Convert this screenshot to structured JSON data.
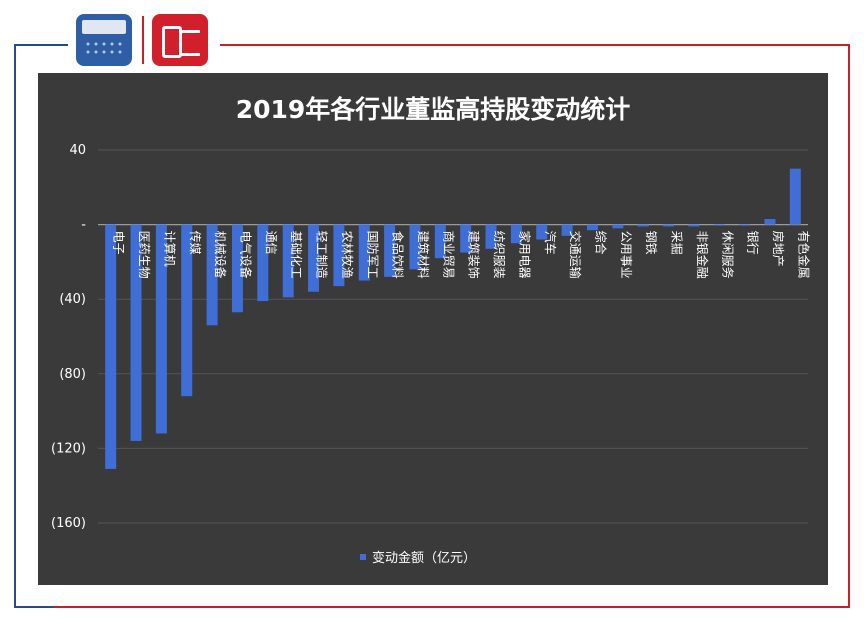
{
  "chart_data": {
    "type": "bar",
    "title": "2019年各行业董监高持股变动统计",
    "legend": {
      "name": "变动金额（亿元）",
      "position": "bottom"
    },
    "color": "#3f6fd6",
    "ylim": [
      -160,
      40
    ],
    "yticks": [
      {
        "value": 40,
        "label": "40"
      },
      {
        "value": 0,
        "label": "-"
      },
      {
        "value": -40,
        "label": "(40)"
      },
      {
        "value": -80,
        "label": "(80)"
      },
      {
        "value": -120,
        "label": "(120)"
      },
      {
        "value": -160,
        "label": "(160)"
      }
    ],
    "grid": true,
    "categories": [
      "电子",
      "医药生物",
      "计算机",
      "传媒",
      "机械设备",
      "电气设备",
      "通信",
      "基础化工",
      "轻工制造",
      "农林牧渔",
      "国防军工",
      "食品饮料",
      "建筑材料",
      "商业贸易",
      "建筑装饰",
      "纺织服装",
      "家用电器",
      "汽车",
      "交通运输",
      "综合",
      "公用事业",
      "钢铁",
      "采掘",
      "非银金融",
      "休闲服务",
      "银行",
      "房地产",
      "有色金属"
    ],
    "values": [
      -131,
      -116,
      -112,
      -92,
      -54,
      -47,
      -41,
      -39,
      -36,
      -33,
      -30,
      -28,
      -24,
      -18,
      -15,
      -13,
      -10,
      -8,
      -6,
      -3,
      -2,
      -1,
      -1,
      -1,
      -0.5,
      -0.3,
      3,
      30
    ]
  }
}
